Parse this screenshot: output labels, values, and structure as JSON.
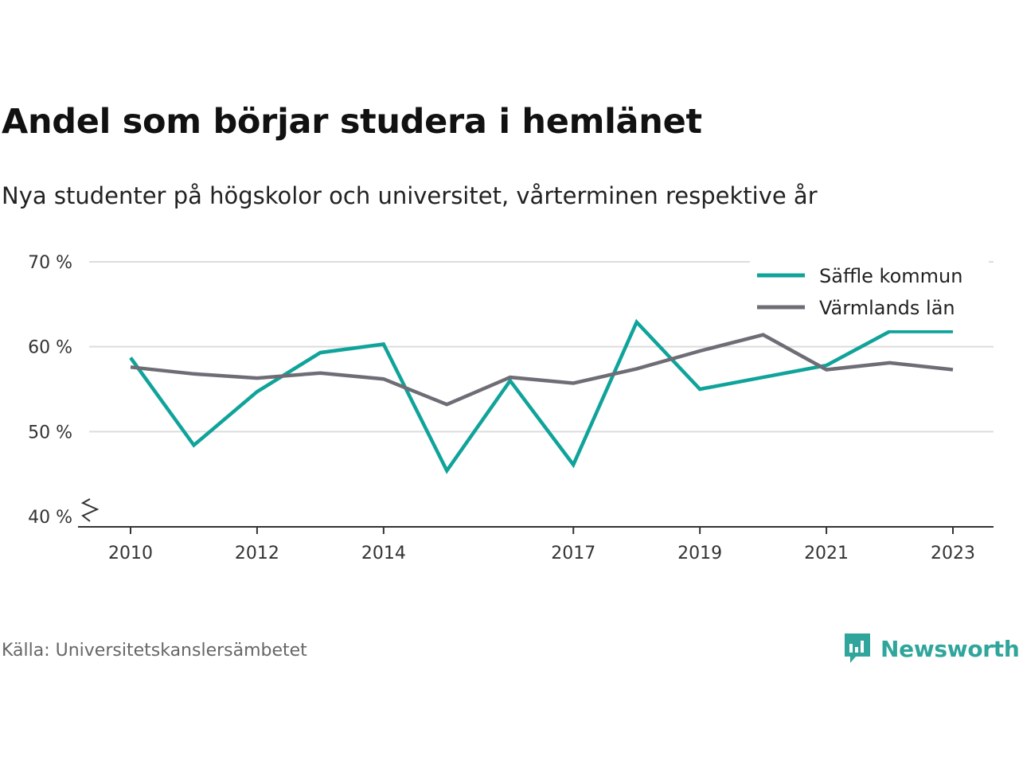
{
  "header": {
    "title": "Andel som börjar studera i hemlänet",
    "subtitle": "Nya studenter på högskolor och universitet, vårterminen respektive år"
  },
  "footer": {
    "source": "Källa: Universitetskanslersämbetet",
    "brand": "Newsworthy"
  },
  "colors": {
    "series_1": "#0fa39a",
    "series_2": "#6e6d75",
    "grid": "#dcdcdc",
    "axis": "#333333",
    "brand": "#2fa59b"
  },
  "chart_data": {
    "type": "line",
    "title": "Andel som börjar studera i hemlänet",
    "subtitle": "Nya studenter på högskolor och universitet, vårterminen respektive år",
    "xlabel": "",
    "ylabel": "",
    "x": [
      2010,
      2011,
      2012,
      2013,
      2014,
      2015,
      2016,
      2017,
      2018,
      2019,
      2020,
      2021,
      2022,
      2023
    ],
    "x_tick_labels": [
      "2010",
      "2012",
      "2014",
      "2017",
      "2019",
      "2021",
      "2023"
    ],
    "x_tick_values": [
      2010,
      2012,
      2014,
      2017,
      2019,
      2021,
      2023
    ],
    "y_tick_labels": [
      "40 %",
      "50 %",
      "60 %",
      "70 %"
    ],
    "y_tick_values": [
      40,
      50,
      60,
      70
    ],
    "ylim": [
      40,
      70
    ],
    "y_axis_broken": true,
    "grid": true,
    "legend_position": "top-right",
    "series": [
      {
        "name": "Säffle kommun",
        "color": "#0fa39a",
        "values": [
          58.7,
          48.4,
          54.7,
          59.3,
          60.3,
          45.4,
          56.0,
          46.1,
          62.9,
          55.0,
          56.4,
          57.8,
          61.8,
          61.8
        ]
      },
      {
        "name": "Värmlands län",
        "color": "#6e6d75",
        "values": [
          57.6,
          56.8,
          56.3,
          56.9,
          56.2,
          53.2,
          56.4,
          55.7,
          57.4,
          59.5,
          61.4,
          57.3,
          58.1,
          57.3
        ]
      }
    ]
  }
}
